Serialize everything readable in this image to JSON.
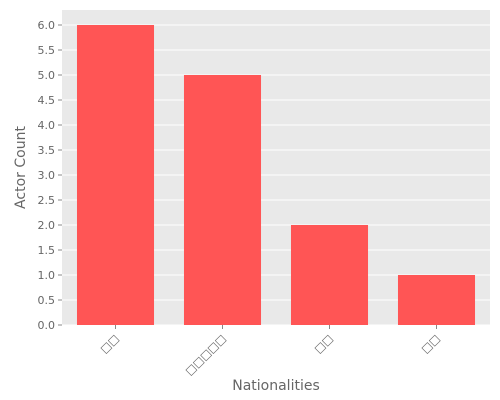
{
  "chart_data": {
    "type": "bar",
    "categories": [
      "□□",
      "□□□□□",
      "□□",
      "□□"
    ],
    "values": [
      6,
      5,
      2,
      1
    ],
    "title": "",
    "xlabel": "Nationalities",
    "ylabel": "Actor Count",
    "ylim": [
      0,
      6.3
    ],
    "yticks": [
      "0.0",
      "0.5",
      "1.0",
      "1.5",
      "2.0",
      "2.5",
      "3.0",
      "3.5",
      "4.0",
      "4.5",
      "5.0",
      "5.5",
      "6.0"
    ],
    "grid": true,
    "legend": "none",
    "colors": {
      "bar": "#ff5555",
      "plot_background": "#e9e9e9",
      "grid": "#ffffff",
      "text": "#666666"
    }
  }
}
